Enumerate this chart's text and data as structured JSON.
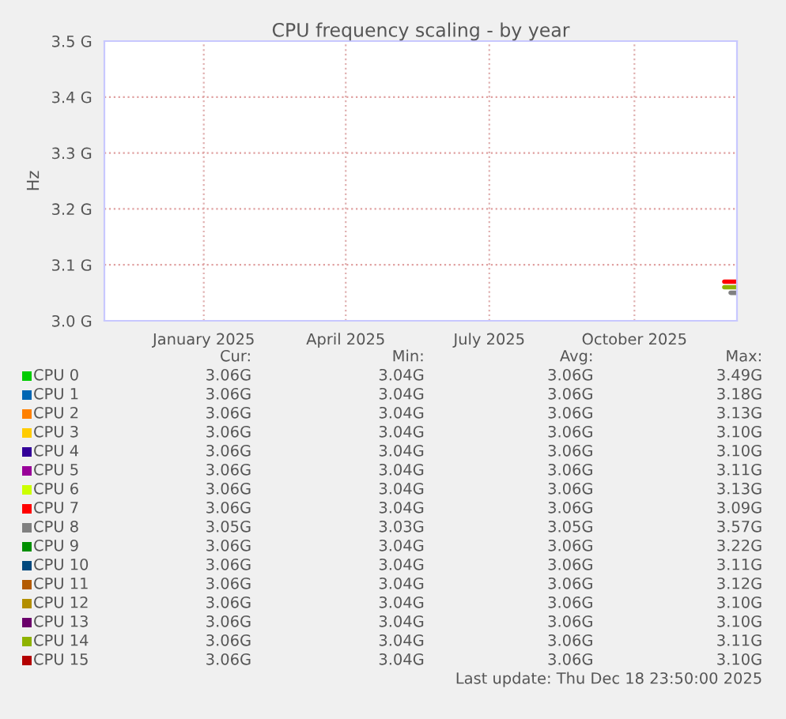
{
  "chart_data": {
    "type": "line",
    "title": "CPU frequency scaling - by year",
    "ylabel": "Hz",
    "xlim": [
      "2024-11-13",
      "2025-12-19"
    ],
    "xticks": [
      {
        "value": "2025-01-15",
        "label": "January 2025"
      },
      {
        "value": "2025-04-15",
        "label": "April 2025"
      },
      {
        "value": "2025-07-15",
        "label": "July 2025"
      },
      {
        "value": "2025-10-15",
        "label": "October 2025"
      }
    ],
    "ylim": [
      3.0,
      3.5
    ],
    "yticks": [
      {
        "value": 3.0,
        "label": "3.0 G"
      },
      {
        "value": 3.1,
        "label": "3.1 G"
      },
      {
        "value": 3.2,
        "label": "3.2 G"
      },
      {
        "value": 3.3,
        "label": "3.3 G"
      },
      {
        "value": 3.4,
        "label": "3.4 G"
      },
      {
        "value": 3.5,
        "label": "3.5 G"
      }
    ],
    "grid": true,
    "legend": "bottom",
    "series": [
      {
        "name": "CPU 0",
        "color": "#00cc00"
      },
      {
        "name": "CPU 1",
        "color": "#0066b3"
      },
      {
        "name": "CPU 2",
        "color": "#ff8000"
      },
      {
        "name": "CPU 3",
        "color": "#ffcc00"
      },
      {
        "name": "CPU 4",
        "color": "#330099"
      },
      {
        "name": "CPU 5",
        "color": "#990099"
      },
      {
        "name": "CPU 6",
        "color": "#ccff00"
      },
      {
        "name": "CPU 7",
        "color": "#ff0000",
        "x": [
          "2025-12-11",
          "2025-12-19"
        ],
        "values": [
          3.07,
          3.07
        ]
      },
      {
        "name": "CPU 8",
        "color": "#808080",
        "x": [
          "2025-12-15",
          "2025-12-19"
        ],
        "values": [
          3.05,
          3.05
        ]
      },
      {
        "name": "CPU 9",
        "color": "#008f00"
      },
      {
        "name": "CPU 10",
        "color": "#00487d"
      },
      {
        "name": "CPU 11",
        "color": "#b35a00"
      },
      {
        "name": "CPU 12",
        "color": "#b38f00"
      },
      {
        "name": "CPU 13",
        "color": "#6b006b"
      },
      {
        "name": "CPU 14",
        "color": "#8fb300",
        "x": [
          "2025-12-11",
          "2025-12-19"
        ],
        "values": [
          3.06,
          3.06
        ]
      },
      {
        "name": "CPU 15",
        "color": "#b30000"
      }
    ],
    "annotations": [
      "Cur:",
      "Min:",
      "Avg:",
      "Max:",
      "3.06G",
      "3.04G",
      "3.06G",
      "3.49G",
      "3.06G",
      "3.04G",
      "3.06G",
      "3.18G",
      "3.06G",
      "3.04G",
      "3.06G",
      "3.13G",
      "3.06G",
      "3.04G",
      "3.06G",
      "3.10G",
      "3.06G",
      "3.04G",
      "3.06G",
      "3.10G",
      "3.06G",
      "3.04G",
      "3.06G",
      "3.11G",
      "3.06G",
      "3.04G",
      "3.06G",
      "3.13G",
      "3.06G",
      "3.04G",
      "3.06G",
      "3.09G",
      "3.05G",
      "3.03G",
      "3.05G",
      "3.57G",
      "3.06G",
      "3.04G",
      "3.06G",
      "3.22G",
      "3.06G",
      "3.04G",
      "3.06G",
      "3.11G",
      "3.06G",
      "3.04G",
      "3.06G",
      "3.12G",
      "3.06G",
      "3.04G",
      "3.06G",
      "3.10G",
      "3.06G",
      "3.04G",
      "3.06G",
      "3.10G",
      "3.06G",
      "3.04G",
      "3.06G",
      "3.11G",
      "3.06G",
      "3.04G",
      "3.06G",
      "3.10G",
      "Last update: Thu Dec 18 23:50:00 2025"
    ]
  }
}
